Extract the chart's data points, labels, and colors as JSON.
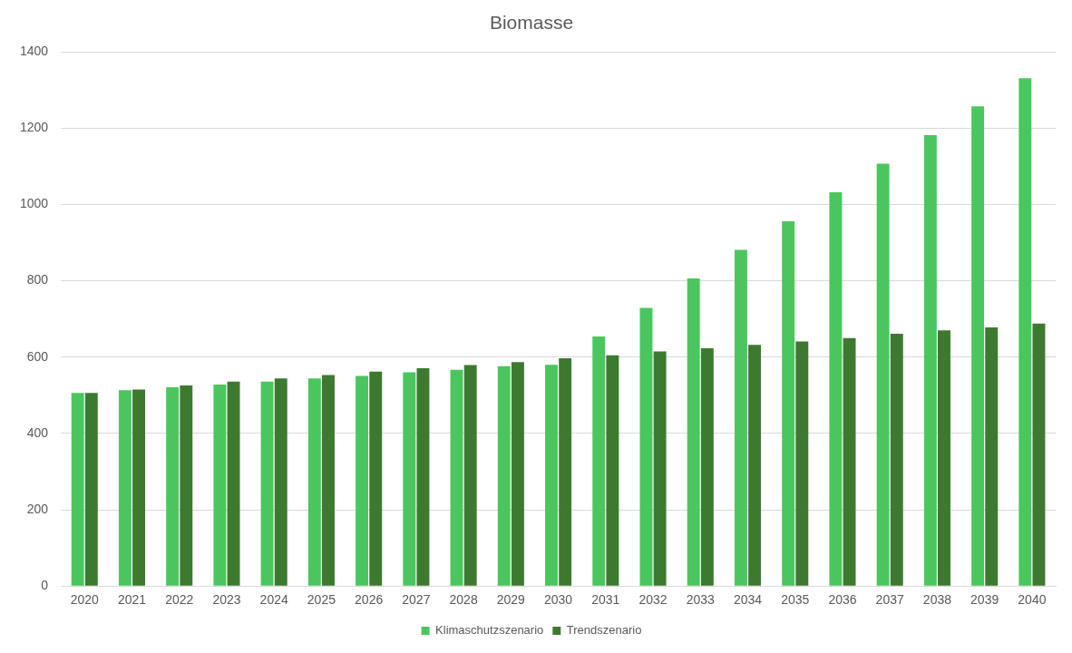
{
  "chart_data": {
    "type": "bar",
    "title": "Biomasse",
    "categories": [
      "2020",
      "2021",
      "2022",
      "2023",
      "2024",
      "2025",
      "2026",
      "2027",
      "2028",
      "2029",
      "2030",
      "2031",
      "2032",
      "2033",
      "2034",
      "2035",
      "2036",
      "2037",
      "2038",
      "2039",
      "2040"
    ],
    "series": [
      {
        "name": "Klimaschutzszenario",
        "color": "#4bc65f",
        "values": [
          506,
          513,
          521,
          528,
          536,
          544,
          551,
          560,
          567,
          576,
          580,
          654,
          729,
          806,
          881,
          956,
          1032,
          1107,
          1182,
          1257,
          1331
        ]
      },
      {
        "name": "Trendszenario",
        "color": "#3d7a30",
        "values": [
          506,
          515,
          526,
          536,
          544,
          553,
          562,
          571,
          579,
          587,
          597,
          605,
          615,
          623,
          632,
          641,
          650,
          661,
          670,
          678,
          688
        ]
      }
    ],
    "ylim": [
      0,
      1400
    ],
    "yticks": [
      0,
      200,
      400,
      600,
      800,
      1000,
      1200,
      1400
    ],
    "grid": "y",
    "legend": "bottom"
  }
}
